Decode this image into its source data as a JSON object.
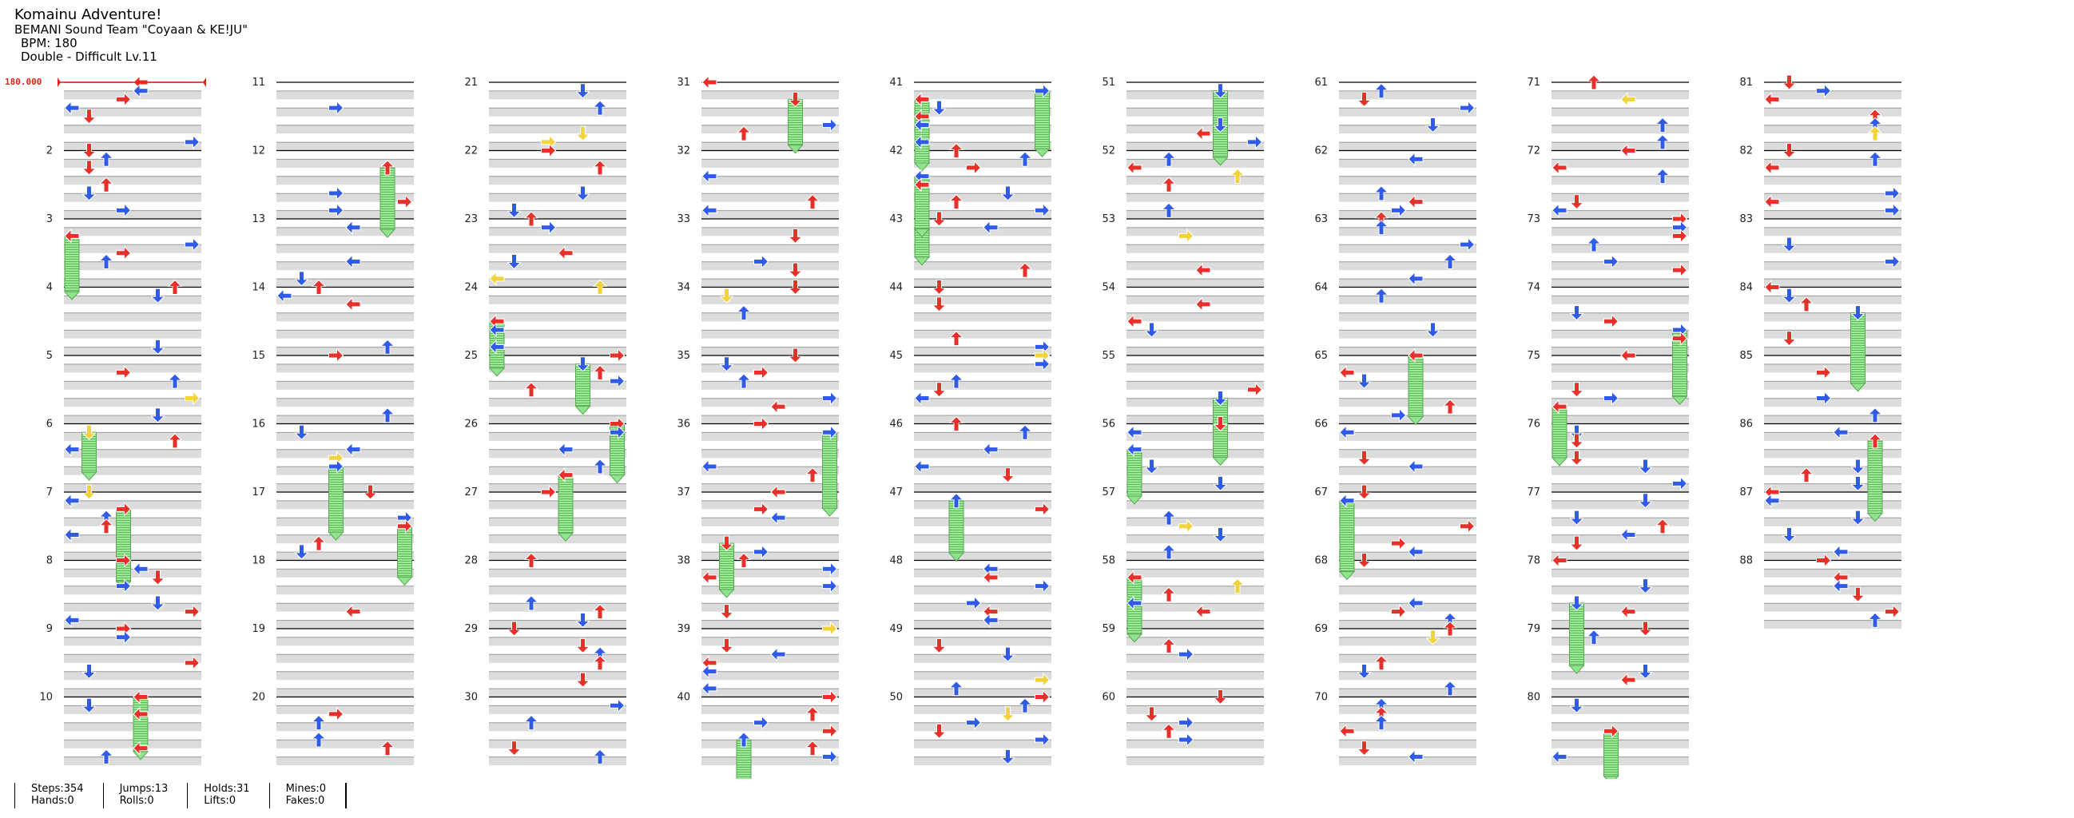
{
  "song": {
    "title": "Komainu Adventure!",
    "artist": "BEMANI Sound Team \"Coyaan & KE!JU\"",
    "bpm_line": "BPM: 180",
    "difficulty_line": "Double - Difficult  Lv.11"
  },
  "bpm_marker": "180.000",
  "measure_labels": [
    "2",
    "3",
    "4",
    "5",
    "6",
    "7",
    "8",
    "9",
    "10",
    "11",
    "12",
    "13",
    "14",
    "15",
    "16",
    "17",
    "18",
    "19",
    "20",
    "21",
    "22",
    "23",
    "24",
    "25",
    "26",
    "27",
    "28",
    "29",
    "30",
    "31",
    "32",
    "33",
    "34",
    "35",
    "36",
    "37",
    "38",
    "39",
    "40",
    "41",
    "42",
    "43",
    "44",
    "45",
    "46",
    "47",
    "48",
    "49",
    "50",
    "51",
    "52",
    "53",
    "54",
    "55",
    "56",
    "57",
    "58",
    "59",
    "60",
    "61",
    "62",
    "63",
    "64",
    "65",
    "66",
    "67",
    "68",
    "69",
    "70",
    "71",
    "72",
    "73",
    "74",
    "75",
    "76",
    "77",
    "78",
    "79",
    "80",
    "81",
    "82",
    "83",
    "84",
    "85",
    "86",
    "87",
    "88"
  ],
  "stats": {
    "steps": "Steps:354",
    "hands": "Hands:0",
    "jumps": "Jumps:13",
    "rolls": "Rolls:0",
    "holds": "Holds:31",
    "lifts": "Lifts:0",
    "mines": "Mines:0",
    "fakes": "Fakes:0"
  },
  "colors": {
    "quarter_note": "#e8302a",
    "eighth_note": "#2f5be8",
    "sixteenth_note": "#f2d43a",
    "hold_body": "#8fe38a",
    "stripe": "#e2e2e2",
    "bpm_marker": "#e0201a"
  }
}
